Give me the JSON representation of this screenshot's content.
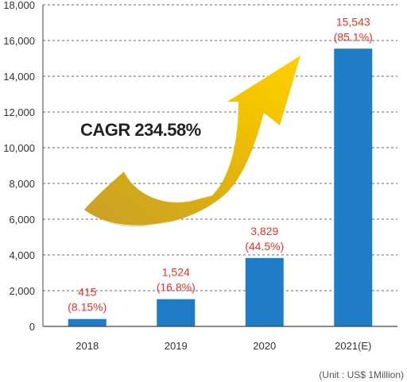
{
  "chart_data": {
    "type": "bar",
    "categories": [
      "2018",
      "2019",
      "2020",
      "2021(E)"
    ],
    "values": [
      415,
      1524,
      3829,
      15543
    ],
    "value_labels": [
      "415",
      "1,524",
      "3,829",
      "15,543"
    ],
    "share_labels": [
      "(8.15%)",
      "(16.8%)",
      "(44.5%)",
      "(85.1%)"
    ],
    "ylim": [
      0,
      18000
    ],
    "yticks": [
      0,
      2000,
      4000,
      6000,
      8000,
      10000,
      12000,
      14000,
      16000,
      18000
    ],
    "ytick_labels": [
      "0",
      "2,000",
      "4,000",
      "6,000",
      "8,000",
      "10,000",
      "12,000",
      "14,000",
      "16,000",
      "18,000"
    ],
    "grid": true,
    "annotation": "CAGR 234.58%",
    "unit_note": "(Unit : US$ 1Million)",
    "colors": {
      "bar": "#1f7cc6",
      "value_label": "#e8332a",
      "grid": "#666666",
      "arrow": "#f2c200",
      "arrow_shade": "#c9a12a"
    }
  }
}
